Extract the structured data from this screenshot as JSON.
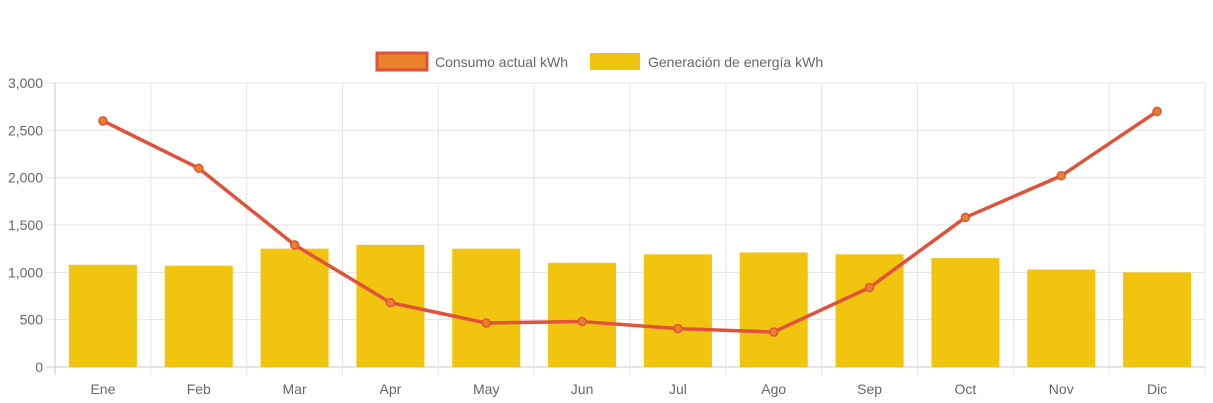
{
  "chart_data": {
    "type": "bar",
    "categories": [
      "Ene",
      "Feb",
      "Mar",
      "Apr",
      "May",
      "Jun",
      "Jul",
      "Ago",
      "Sep",
      "Oct",
      "Nov",
      "Dic"
    ],
    "series": [
      {
        "name": "Consumo actual kWh",
        "kind": "line",
        "color": "#e0523a",
        "point_color": "#e8832a",
        "values": [
          2600,
          2100,
          1290,
          680,
          465,
          480,
          405,
          370,
          840,
          1580,
          2020,
          2700
        ]
      },
      {
        "name": "Generación de energía kWh",
        "kind": "bar",
        "color": "#f1c40f",
        "values": [
          1080,
          1070,
          1250,
          1290,
          1250,
          1100,
          1190,
          1210,
          1190,
          1150,
          1030,
          1000
        ]
      }
    ],
    "yticks": [
      "0",
      "500",
      "1,000",
      "1,500",
      "2,000",
      "2,500",
      "3,000"
    ],
    "ylim": [
      0,
      3000
    ],
    "grid": true,
    "legend_position": "top-center",
    "title": "",
    "xlabel": "",
    "ylabel": ""
  }
}
